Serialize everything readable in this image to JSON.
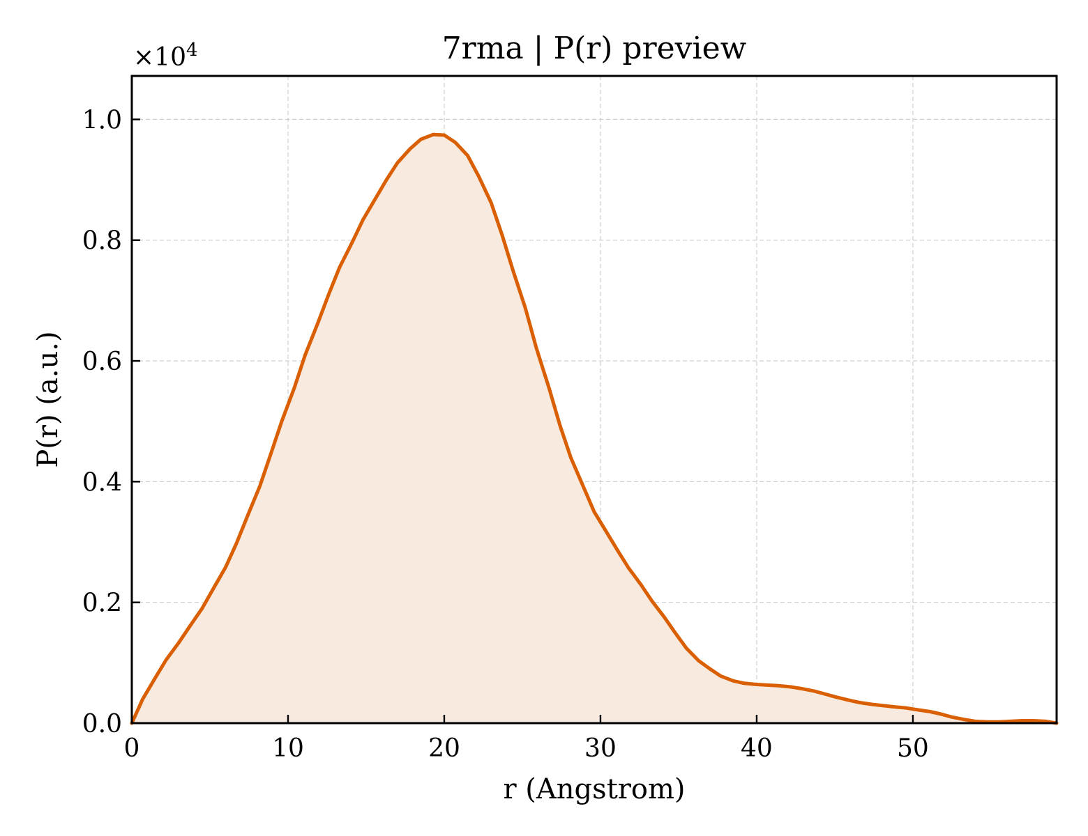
{
  "chart_data": {
    "type": "area",
    "title": "7rma | P(r) preview",
    "xlabel": "r (Angstrom)",
    "ylabel": "P(r) (a.u.)",
    "y_multiplier": "×10",
    "y_multiplier_exponent": "4",
    "xlim": [
      0,
      59.2
    ],
    "ylim": [
      0,
      1.072
    ],
    "x_ticks": [
      0,
      10,
      20,
      30,
      40,
      50
    ],
    "x_tick_labels": [
      "0",
      "10",
      "20",
      "30",
      "40",
      "50"
    ],
    "y_ticks": [
      0,
      0.2,
      0.4,
      0.6,
      0.8,
      1.0
    ],
    "y_tick_labels": [
      "0.0",
      "0.2",
      "0.4",
      "0.6",
      "0.8",
      "1.0"
    ],
    "grid": true,
    "line_color": "#d95f02",
    "fill_color": "#f9eadf",
    "series": [
      {
        "x": [
          0,
          0.7,
          1.5,
          2.2,
          3.0,
          3.7,
          4.5,
          5.2,
          6.0,
          6.7,
          7.4,
          8.2,
          8.9,
          9.6,
          10.4,
          11.1,
          11.9,
          12.6,
          13.3,
          14.1,
          14.8,
          15.6,
          16.3,
          17.0,
          17.8,
          18.5,
          19.3,
          20.0,
          20.7,
          21.5,
          22.2,
          23.0,
          23.7,
          24.4,
          25.2,
          25.9,
          26.7,
          27.4,
          28.1,
          28.9,
          29.6,
          30.4,
          31.1,
          31.8,
          32.6,
          33.3,
          34.1,
          34.8,
          35.5,
          36.3,
          37.0,
          37.7,
          38.5,
          39.2,
          40.0,
          40.7,
          41.4,
          42.2,
          42.9,
          43.7,
          44.4,
          45.1,
          45.9,
          46.6,
          47.4,
          48.1,
          48.8,
          49.6,
          50.3,
          51.1,
          51.8,
          52.5,
          53.3,
          54.0,
          54.8,
          55.5,
          56.2,
          57.0,
          57.7,
          58.5,
          59.2
        ],
        "y": [
          0.0,
          0.04,
          0.075,
          0.105,
          0.133,
          0.16,
          0.19,
          0.222,
          0.258,
          0.298,
          0.343,
          0.393,
          0.446,
          0.5,
          0.555,
          0.61,
          0.662,
          0.71,
          0.755,
          0.796,
          0.834,
          0.869,
          0.9,
          0.928,
          0.951,
          0.967,
          0.975,
          0.974,
          0.962,
          0.94,
          0.906,
          0.862,
          0.809,
          0.75,
          0.687,
          0.621,
          0.556,
          0.494,
          0.44,
          0.392,
          0.35,
          0.316,
          0.286,
          0.257,
          0.229,
          0.202,
          0.175,
          0.149,
          0.124,
          0.103,
          0.09,
          0.078,
          0.07,
          0.066,
          0.064,
          0.063,
          0.062,
          0.06,
          0.057,
          0.053,
          0.048,
          0.043,
          0.038,
          0.034,
          0.031,
          0.029,
          0.027,
          0.025,
          0.022,
          0.019,
          0.015,
          0.01,
          0.006,
          0.003,
          0.002,
          0.002,
          0.003,
          0.004,
          0.004,
          0.003,
          0.0
        ]
      }
    ]
  }
}
